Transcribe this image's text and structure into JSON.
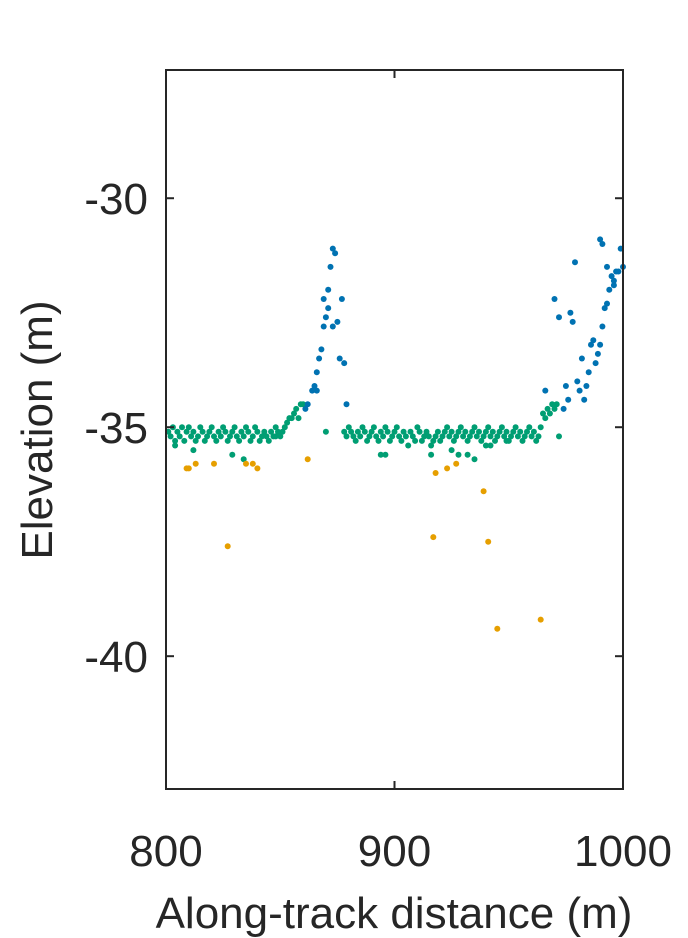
{
  "chart_data": {
    "type": "scatter",
    "title": "",
    "xlabel": "Along-track distance (m)",
    "ylabel": "Elevation (m)",
    "xlim": [
      800,
      1000
    ],
    "ylim": [
      -42.9,
      -27.2
    ],
    "xticks": [
      800,
      900,
      1000
    ],
    "xtick_labels": [
      "800",
      "900",
      "1000"
    ],
    "yticks": [
      -30,
      -35,
      -40
    ],
    "ytick_labels": [
      "-30",
      "-35",
      "-40"
    ],
    "grid": false,
    "legend": "none",
    "series": [
      {
        "color": "#009E73",
        "points": [
          [
            801,
            -35.1
          ],
          [
            802,
            -35.2
          ],
          [
            803,
            -35.0
          ],
          [
            804,
            -35.3
          ],
          [
            805,
            -35.1
          ],
          [
            806,
            -35.2
          ],
          [
            807,
            -35.0
          ],
          [
            808,
            -35.3
          ],
          [
            809,
            -35.1
          ],
          [
            810,
            -35.0
          ],
          [
            811,
            -35.2
          ],
          [
            812,
            -35.1
          ],
          [
            813,
            -35.3
          ],
          [
            814,
            -35.2
          ],
          [
            815,
            -35.0
          ],
          [
            816,
            -35.1
          ],
          [
            817,
            -35.3
          ],
          [
            818,
            -35.2
          ],
          [
            819,
            -35.1
          ],
          [
            820,
            -35.0
          ],
          [
            821,
            -35.2
          ],
          [
            822,
            -35.3
          ],
          [
            823,
            -35.1
          ],
          [
            824,
            -35.2
          ],
          [
            825,
            -35.0
          ],
          [
            826,
            -35.1
          ],
          [
            827,
            -35.3
          ],
          [
            828,
            -35.2
          ],
          [
            829,
            -35.1
          ],
          [
            830,
            -35.0
          ],
          [
            831,
            -35.2
          ],
          [
            832,
            -35.3
          ],
          [
            833,
            -35.1
          ],
          [
            834,
            -35.2
          ],
          [
            835,
            -35.0
          ],
          [
            836,
            -35.1
          ],
          [
            837,
            -35.3
          ],
          [
            838,
            -35.2
          ],
          [
            839,
            -35.0
          ],
          [
            840,
            -35.1
          ],
          [
            841,
            -35.3
          ],
          [
            842,
            -35.2
          ],
          [
            843,
            -35.1
          ],
          [
            844,
            -35.2
          ],
          [
            845,
            -35.3
          ],
          [
            846,
            -35.1
          ],
          [
            847,
            -35.2
          ],
          [
            848,
            -35.0
          ],
          [
            849,
            -35.1
          ],
          [
            850,
            -35.2
          ],
          [
            851,
            -35.1
          ],
          [
            852,
            -35.0
          ],
          [
            853,
            -34.9
          ],
          [
            854,
            -34.8
          ],
          [
            855,
            -34.8
          ],
          [
            856,
            -34.7
          ],
          [
            857,
            -34.6
          ],
          [
            858,
            -34.8
          ],
          [
            859,
            -34.5
          ],
          [
            860,
            -34.5
          ],
          [
            812,
            -35.5
          ],
          [
            829,
            -35.6
          ],
          [
            834,
            -35.7
          ],
          [
            848,
            -35.2
          ],
          [
            804,
            -35.4
          ],
          [
            870,
            -35.1
          ],
          [
            878,
            -35.1
          ],
          [
            879,
            -35.2
          ],
          [
            880,
            -35.0
          ],
          [
            881,
            -35.1
          ],
          [
            882,
            -35.2
          ],
          [
            883,
            -35.3
          ],
          [
            884,
            -35.1
          ],
          [
            885,
            -35.2
          ],
          [
            886,
            -35.0
          ],
          [
            887,
            -35.1
          ],
          [
            888,
            -35.3
          ],
          [
            889,
            -35.2
          ],
          [
            890,
            -35.1
          ],
          [
            891,
            -35.0
          ],
          [
            892,
            -35.2
          ],
          [
            893,
            -35.3
          ],
          [
            894,
            -35.1
          ],
          [
            895,
            -35.2
          ],
          [
            896,
            -35.0
          ],
          [
            897,
            -35.1
          ],
          [
            898,
            -35.3
          ],
          [
            899,
            -35.2
          ],
          [
            900,
            -35.1
          ],
          [
            901,
            -35.0
          ],
          [
            902,
            -35.2
          ],
          [
            903,
            -35.3
          ],
          [
            904,
            -35.1
          ],
          [
            905,
            -35.2
          ],
          [
            906,
            -35.4
          ],
          [
            907,
            -35.1
          ],
          [
            908,
            -35.2
          ],
          [
            909,
            -35.3
          ],
          [
            910,
            -35.0
          ],
          [
            911,
            -35.1
          ],
          [
            912,
            -35.3
          ],
          [
            913,
            -35.2
          ],
          [
            914,
            -35.1
          ],
          [
            915,
            -35.2
          ],
          [
            916,
            -35.4
          ],
          [
            917,
            -35.3
          ],
          [
            918,
            -35.2
          ],
          [
            919,
            -35.1
          ],
          [
            920,
            -35.3
          ],
          [
            921,
            -35.2
          ],
          [
            922,
            -35.1
          ],
          [
            923,
            -35.0
          ],
          [
            924,
            -35.2
          ],
          [
            925,
            -35.1
          ],
          [
            926,
            -35.3
          ],
          [
            927,
            -35.2
          ],
          [
            928,
            -35.1
          ],
          [
            929,
            -35.0
          ],
          [
            930,
            -35.2
          ],
          [
            931,
            -35.1
          ],
          [
            932,
            -35.3
          ],
          [
            933,
            -35.2
          ],
          [
            934,
            -35.1
          ],
          [
            935,
            -35.0
          ],
          [
            936,
            -35.2
          ],
          [
            937,
            -35.1
          ],
          [
            938,
            -35.3
          ],
          [
            939,
            -35.2
          ],
          [
            940,
            -35.1
          ],
          [
            941,
            -35.0
          ],
          [
            942,
            -35.2
          ],
          [
            943,
            -35.1
          ],
          [
            944,
            -35.3
          ],
          [
            945,
            -35.2
          ],
          [
            946,
            -35.1
          ],
          [
            947,
            -35.0
          ],
          [
            948,
            -35.2
          ],
          [
            949,
            -35.1
          ],
          [
            950,
            -35.3
          ],
          [
            951,
            -35.2
          ],
          [
            952,
            -35.1
          ],
          [
            953,
            -35.0
          ],
          [
            954,
            -35.2
          ],
          [
            955,
            -35.1
          ],
          [
            956,
            -35.3
          ],
          [
            957,
            -35.2
          ],
          [
            958,
            -35.1
          ],
          [
            959,
            -35.0
          ],
          [
            960,
            -35.2
          ],
          [
            961,
            -35.1
          ],
          [
            962,
            -35.3
          ],
          [
            963,
            -35.2
          ],
          [
            964,
            -35.0
          ],
          [
            965,
            -34.7
          ],
          [
            966,
            -34.8
          ],
          [
            967,
            -34.6
          ],
          [
            968,
            -34.7
          ],
          [
            969,
            -34.5
          ],
          [
            970,
            -34.6
          ],
          [
            971,
            -34.5
          ],
          [
            972,
            -35.2
          ],
          [
            894,
            -35.6
          ],
          [
            896,
            -35.6
          ],
          [
            916,
            -35.6
          ],
          [
            925,
            -35.5
          ],
          [
            928,
            -35.6
          ],
          [
            932,
            -35.6
          ],
          [
            935,
            -35.7
          ],
          [
            940,
            -35.4
          ],
          [
            942,
            -35.4
          ],
          [
            949,
            -35.3
          ]
        ]
      },
      {
        "color": "#0072B2",
        "points": [
          [
            861,
            -34.6
          ],
          [
            862,
            -34.5
          ],
          [
            864,
            -34.2
          ],
          [
            865,
            -34.1
          ],
          [
            866,
            -33.8
          ],
          [
            867,
            -33.5
          ],
          [
            868,
            -33.3
          ],
          [
            869,
            -32.8
          ],
          [
            869,
            -32.2
          ],
          [
            870,
            -32.6
          ],
          [
            871,
            -32.0
          ],
          [
            872,
            -31.5
          ],
          [
            873,
            -31.1
          ],
          [
            874,
            -31.2
          ],
          [
            875,
            -32.7
          ],
          [
            876,
            -33.5
          ],
          [
            877,
            -32.2
          ],
          [
            878,
            -33.6
          ],
          [
            879,
            -34.5
          ],
          [
            866,
            -34.2
          ],
          [
            871,
            -32.4
          ],
          [
            873,
            -32.8
          ],
          [
            966,
            -34.2
          ],
          [
            970,
            -32.2
          ],
          [
            972,
            -32.6
          ],
          [
            974,
            -34.6
          ],
          [
            975,
            -34.1
          ],
          [
            976,
            -34.4
          ],
          [
            977,
            -32.5
          ],
          [
            978,
            -32.7
          ],
          [
            979,
            -31.4
          ],
          [
            980,
            -34.0
          ],
          [
            981,
            -34.2
          ],
          [
            982,
            -33.5
          ],
          [
            983,
            -34.4
          ],
          [
            984,
            -34.1
          ],
          [
            985,
            -33.8
          ],
          [
            986,
            -33.2
          ],
          [
            987,
            -33.1
          ],
          [
            988,
            -33.6
          ],
          [
            989,
            -33.4
          ],
          [
            990,
            -33.2
          ],
          [
            991,
            -32.8
          ],
          [
            992,
            -32.4
          ],
          [
            993,
            -32.3
          ],
          [
            994,
            -32.0
          ],
          [
            995,
            -31.7
          ],
          [
            996,
            -31.8
          ],
          [
            997,
            -31.6
          ],
          [
            998,
            -31.6
          ],
          [
            999,
            -31.1
          ],
          [
            1000,
            -31.5
          ],
          [
            990,
            -30.9
          ],
          [
            991,
            -31.0
          ],
          [
            993,
            -31.5
          ],
          [
            996,
            -31.9
          ]
        ]
      },
      {
        "color": "#E69F00",
        "points": [
          [
            809,
            -35.9
          ],
          [
            810,
            -35.9
          ],
          [
            813,
            -35.8
          ],
          [
            821,
            -35.8
          ],
          [
            827,
            -37.6
          ],
          [
            835,
            -35.8
          ],
          [
            838,
            -35.8
          ],
          [
            840,
            -35.9
          ],
          [
            862,
            -35.7
          ],
          [
            917,
            -37.4
          ],
          [
            918,
            -36.0
          ],
          [
            923,
            -35.9
          ],
          [
            927,
            -35.8
          ],
          [
            939,
            -36.4
          ],
          [
            941,
            -37.5
          ],
          [
            945,
            -39.4
          ],
          [
            964,
            -39.2
          ]
        ]
      }
    ]
  }
}
